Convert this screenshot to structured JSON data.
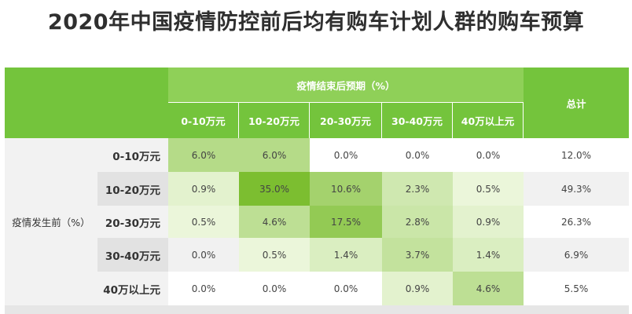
{
  "title": "2020年中国疫情防控前后均有购车计划人群的购车预算",
  "colors": {
    "header_green": "#74c43c",
    "header_green_light": "#8fd058",
    "side_gray": "#f2f2f2",
    "row_label_gray": "#e2e2e2",
    "stripe_gray": "#f1f1f1",
    "cell_white": "#ffffff"
  },
  "chart_data": {
    "type": "heatmap",
    "title": "2020年中国疫情防控前后均有购车计划人群的购车预算",
    "col_group_label": "疫情结束后预期（%）",
    "row_group_label": "疫情发生前（%）",
    "total_label": "总计",
    "columns": [
      "0-10万元",
      "10-20万元",
      "20-30万元",
      "30-40万元",
      "40万以上元"
    ],
    "rows": [
      "0-10万元",
      "10-20万元",
      "20-30万元",
      "30-40万元",
      "40万以上元"
    ],
    "values": [
      [
        "6.0%",
        "6.0%",
        "0.0%",
        "0.0%",
        "0.0%"
      ],
      [
        "0.9%",
        "35.0%",
        "10.6%",
        "2.3%",
        "0.5%"
      ],
      [
        "0.5%",
        "4.6%",
        "17.5%",
        "2.8%",
        "0.9%"
      ],
      [
        "0.0%",
        "0.5%",
        "1.4%",
        "3.7%",
        "1.4%"
      ],
      [
        "0.0%",
        "0.0%",
        "0.0%",
        "0.9%",
        "4.6%"
      ]
    ],
    "totals": [
      "12.0%",
      "49.3%",
      "26.3%",
      "6.9%",
      "5.5%"
    ]
  }
}
